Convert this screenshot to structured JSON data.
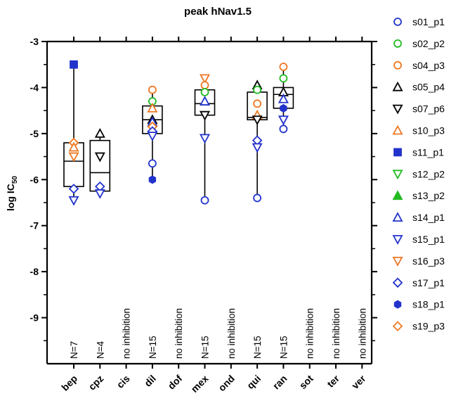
{
  "chart_data": {
    "type": "box",
    "title": "peak hNav1.5",
    "ylabel_main": "log IC",
    "ylabel_sub": "50",
    "xlabel": "",
    "ylim": [
      -10,
      -3
    ],
    "y_ticks": [
      "-3",
      "-4",
      "-5",
      "-6",
      "-7",
      "-8",
      "-9"
    ],
    "categories": [
      "bep",
      "cpz",
      "cis",
      "dil",
      "dof",
      "mex",
      "ond",
      "qui",
      "ran",
      "sot",
      "ter",
      "ver"
    ],
    "annotations": [
      "N=7",
      "N=4",
      "no inhibition",
      "N=15",
      "no inhibition",
      "N=15",
      "no inhibition",
      "N=15",
      "N=15",
      "no inhibition",
      "no inhibition",
      "no inhibition"
    ],
    "legend": [
      {
        "name": "s01_p1",
        "marker": "circle",
        "color": "#2233cc",
        "filled": false
      },
      {
        "name": "s02_p2",
        "marker": "circle",
        "color": "#22bb22",
        "filled": false
      },
      {
        "name": "s04_p3",
        "marker": "circle",
        "color": "#ee7722",
        "filled": false
      },
      {
        "name": "s05_p4",
        "marker": "triangle-up",
        "color": "#000000",
        "filled": false
      },
      {
        "name": "s07_p6",
        "marker": "triangle-down",
        "color": "#000000",
        "filled": false
      },
      {
        "name": "s10_p3",
        "marker": "triangle-up",
        "color": "#ee7722",
        "filled": false
      },
      {
        "name": "s11_p1",
        "marker": "square",
        "color": "#2233cc",
        "filled": true
      },
      {
        "name": "s12_p2",
        "marker": "triangle-down",
        "color": "#22bb22",
        "filled": false
      },
      {
        "name": "s13_p2",
        "marker": "triangle-up",
        "color": "#22bb22",
        "filled": true
      },
      {
        "name": "s14_p1",
        "marker": "triangle-up",
        "color": "#2233cc",
        "filled": false
      },
      {
        "name": "s15_p1",
        "marker": "triangle-down",
        "color": "#2233cc",
        "filled": false
      },
      {
        "name": "s16_p3",
        "marker": "triangle-down",
        "color": "#ee7722",
        "filled": false
      },
      {
        "name": "s17_p1",
        "marker": "diamond",
        "color": "#2233cc",
        "filled": false
      },
      {
        "name": "s18_p1",
        "marker": "hexagon",
        "color": "#2233cc",
        "filled": true
      },
      {
        "name": "s19_p3",
        "marker": "diamond",
        "color": "#ee7722",
        "filled": false
      }
    ],
    "boxes": [
      {
        "category": "bep",
        "min": -6.45,
        "q1": -6.15,
        "median": -5.6,
        "q3": -5.2,
        "max": -3.5
      },
      {
        "category": "cpz",
        "min": -6.3,
        "q1": -6.25,
        "median": -5.85,
        "q3": -5.15,
        "max": -5.0
      },
      {
        "category": "dil",
        "min": -6.0,
        "q1": -5.0,
        "median": -4.7,
        "q3": -4.4,
        "max": -4.05
      },
      {
        "category": "mex",
        "min": -6.45,
        "q1": -4.6,
        "median": -4.35,
        "q3": -4.05,
        "max": -3.8
      },
      {
        "category": "qui",
        "min": -6.4,
        "q1": -4.7,
        "median": -4.65,
        "q3": -4.1,
        "max": -3.95
      },
      {
        "category": "ran",
        "min": -4.9,
        "q1": -4.45,
        "median": -4.15,
        "q3": -4.0,
        "max": -3.55
      }
    ],
    "points": [
      {
        "category": "bep",
        "series": "s11_p1",
        "y": -3.5
      },
      {
        "category": "bep",
        "series": "s19_p3",
        "y": -5.2
      },
      {
        "category": "bep",
        "series": "s10_p3",
        "y": -5.3
      },
      {
        "category": "bep",
        "series": "s16_p3",
        "y": -5.5
      },
      {
        "category": "bep",
        "series": "s17_p1",
        "y": -6.2
      },
      {
        "category": "bep",
        "series": "s15_p1",
        "y": -6.45
      },
      {
        "category": "cpz",
        "series": "s05_p4",
        "y": -5.0
      },
      {
        "category": "cpz",
        "series": "s07_p6",
        "y": -5.5
      },
      {
        "category": "cpz",
        "series": "s17_p1",
        "y": -6.15
      },
      {
        "category": "cpz",
        "series": "s15_p1",
        "y": -6.3
      },
      {
        "category": "dil",
        "series": "s04_p3",
        "y": -4.05
      },
      {
        "category": "dil",
        "series": "s02_p2",
        "y": -4.3
      },
      {
        "category": "dil",
        "series": "s10_p3",
        "y": -4.45
      },
      {
        "category": "dil",
        "series": "s05_p4",
        "y": -4.7
      },
      {
        "category": "dil",
        "series": "s14_p1",
        "y": -4.75
      },
      {
        "category": "dil",
        "series": "s19_p3",
        "y": -4.85
      },
      {
        "category": "dil",
        "series": "s17_p1",
        "y": -4.95
      },
      {
        "category": "dil",
        "series": "s15_p1",
        "y": -5.05
      },
      {
        "category": "dil",
        "series": "s01_p1",
        "y": -5.65
      },
      {
        "category": "dil",
        "series": "s18_p1",
        "y": -6.0
      },
      {
        "category": "mex",
        "series": "s16_p3",
        "y": -3.8
      },
      {
        "category": "mex",
        "series": "s04_p3",
        "y": -3.95
      },
      {
        "category": "mex",
        "series": "s02_p2",
        "y": -4.1
      },
      {
        "category": "mex",
        "series": "s14_p1",
        "y": -4.3
      },
      {
        "category": "mex",
        "series": "s07_p6",
        "y": -4.6
      },
      {
        "category": "mex",
        "series": "s15_p1",
        "y": -5.1
      },
      {
        "category": "mex",
        "series": "s01_p1",
        "y": -6.45
      },
      {
        "category": "qui",
        "series": "s05_p4",
        "y": -3.95
      },
      {
        "category": "qui",
        "series": "s02_p2",
        "y": -4.05
      },
      {
        "category": "qui",
        "series": "s04_p3",
        "y": -4.35
      },
      {
        "category": "qui",
        "series": "s10_p3",
        "y": -4.6
      },
      {
        "category": "qui",
        "series": "s07_p6",
        "y": -4.7
      },
      {
        "category": "qui",
        "series": "s17_p1",
        "y": -5.15
      },
      {
        "category": "qui",
        "series": "s15_p1",
        "y": -5.3
      },
      {
        "category": "qui",
        "series": "s01_p1",
        "y": -6.4
      },
      {
        "category": "ran",
        "series": "s04_p3",
        "y": -3.55
      },
      {
        "category": "ran",
        "series": "s02_p2",
        "y": -3.8
      },
      {
        "category": "ran",
        "series": "s05_p4",
        "y": -4.1
      },
      {
        "category": "ran",
        "series": "s14_p1",
        "y": -4.25
      },
      {
        "category": "ran",
        "series": "s18_p1",
        "y": -4.45
      },
      {
        "category": "ran",
        "series": "s15_p1",
        "y": -4.7
      },
      {
        "category": "ran",
        "series": "s01_p1",
        "y": -4.9
      }
    ]
  }
}
